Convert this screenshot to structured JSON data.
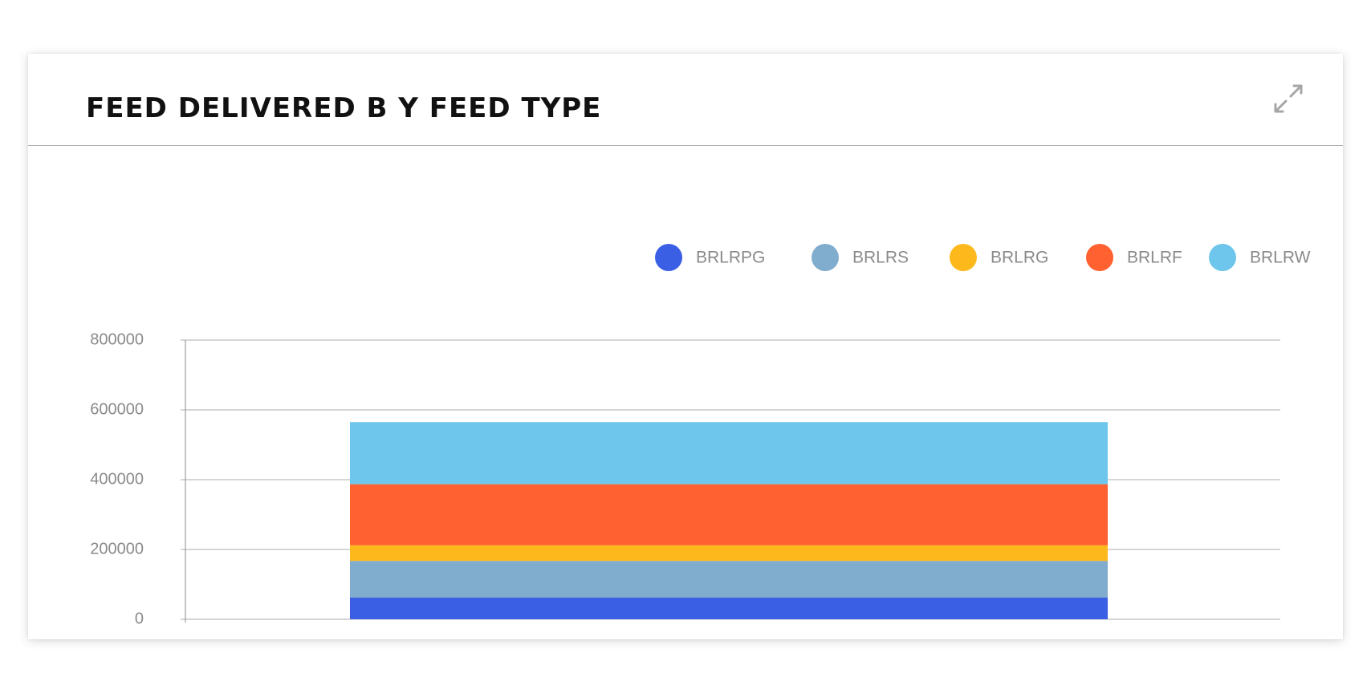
{
  "card": {
    "title": "FEED DELIVERED B Y FEED TYPE",
    "expand_icon": "expand-arrows-icon"
  },
  "colors": {
    "gridline": "#bdbdbd",
    "axis": "#9e9e9e",
    "tick_text": "#8a8a8a",
    "legend_text": "#8a8a8a"
  },
  "chart_data": {
    "type": "bar",
    "stacked": true,
    "categories": [
      ""
    ],
    "ylim": [
      0,
      800000
    ],
    "yticks": [
      0,
      200000,
      400000,
      600000,
      800000
    ],
    "ytick_labels": [
      "0",
      "200000",
      "400000",
      "600000",
      "800000"
    ],
    "grid": true,
    "legend_position": "top-right",
    "series": [
      {
        "name": "BRLRPG",
        "color": "#3a5fe5",
        "values": [
          62000
        ]
      },
      {
        "name": "BRLRS",
        "color": "#80acce",
        "values": [
          105000
        ]
      },
      {
        "name": "BRLRG",
        "color": "#fdb81c",
        "values": [
          45000
        ]
      },
      {
        "name": "BRLRF",
        "color": "#ff6130",
        "values": [
          175000
        ]
      },
      {
        "name": "BRLRW",
        "color": "#6ec6ec",
        "values": [
          178000
        ]
      }
    ]
  }
}
